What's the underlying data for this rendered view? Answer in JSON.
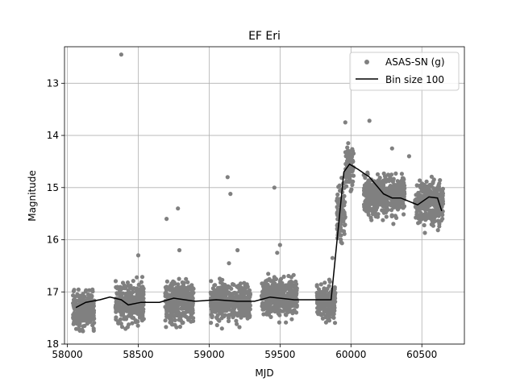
{
  "chart_data": {
    "type": "scatter",
    "title": "EF Eri",
    "xlabel": "MJD",
    "ylabel": "Magnitude",
    "xlim": [
      57980,
      60800
    ],
    "ylim": [
      18.0,
      12.3
    ],
    "y_inverted": true,
    "grid": true,
    "legend_position": "top-right",
    "x_ticks": [
      58000,
      58500,
      59000,
      59500,
      60000,
      60500
    ],
    "y_ticks": [
      13,
      14,
      15,
      16,
      17,
      18
    ],
    "series": [
      {
        "name": "ASAS-SN (g)",
        "kind": "scatter",
        "color": "#808080",
        "observing_seasons": [
          {
            "x_range": [
              58040,
              58190
            ],
            "mag_mean": 17.35,
            "mag_spread": 0.45
          },
          {
            "x_range": [
              58340,
              58540
            ],
            "mag_mean": 17.2,
            "mag_spread": 0.5
          },
          {
            "x_range": [
              58690,
              58890
            ],
            "mag_mean": 17.2,
            "mag_spread": 0.5
          },
          {
            "x_range": [
              59010,
              59290
            ],
            "mag_mean": 17.2,
            "mag_spread": 0.45
          },
          {
            "x_range": [
              59370,
              59620
            ],
            "mag_mean": 17.1,
            "mag_spread": 0.45
          },
          {
            "x_range": [
              59760,
              59890
            ],
            "mag_mean": 17.2,
            "mag_spread": 0.45
          },
          {
            "x_range": [
              59900,
              59960
            ],
            "mag_mean": 15.5,
            "mag_spread": 0.8
          },
          {
            "x_range": [
              59960,
              60020
            ],
            "mag_mean": 14.6,
            "mag_spread": 0.45
          },
          {
            "x_range": [
              60090,
              60380
            ],
            "mag_mean": 15.15,
            "mag_spread": 0.5
          },
          {
            "x_range": [
              60450,
              60650
            ],
            "mag_mean": 15.3,
            "mag_spread": 0.5
          }
        ],
        "outliers": [
          {
            "x": 58380,
            "y": 12.45
          },
          {
            "x": 58500,
            "y": 16.3
          },
          {
            "x": 58700,
            "y": 15.6
          },
          {
            "x": 58780,
            "y": 15.4
          },
          {
            "x": 58790,
            "y": 16.2
          },
          {
            "x": 59130,
            "y": 14.8
          },
          {
            "x": 59150,
            "y": 15.12
          },
          {
            "x": 59200,
            "y": 16.2
          },
          {
            "x": 59140,
            "y": 16.45
          },
          {
            "x": 59460,
            "y": 15.0
          },
          {
            "x": 59500,
            "y": 16.1
          },
          {
            "x": 59480,
            "y": 16.25
          },
          {
            "x": 59870,
            "y": 16.35
          },
          {
            "x": 59960,
            "y": 13.75
          },
          {
            "x": 60130,
            "y": 13.72
          },
          {
            "x": 60290,
            "y": 14.25
          },
          {
            "x": 60410,
            "y": 14.4
          }
        ]
      },
      {
        "name": "Bin size 100",
        "kind": "line",
        "color": "#000000",
        "x": [
          58060,
          58130,
          58230,
          58300,
          58380,
          58430,
          58520,
          58650,
          58750,
          58900,
          59050,
          59200,
          59320,
          59430,
          59600,
          59720,
          59860,
          59950,
          59990,
          60050,
          60130,
          60230,
          60290,
          60350,
          60470,
          60550,
          60610,
          60640
        ],
        "y": [
          17.3,
          17.2,
          17.15,
          17.1,
          17.15,
          17.25,
          17.2,
          17.2,
          17.12,
          17.18,
          17.15,
          17.18,
          17.18,
          17.1,
          17.15,
          17.15,
          17.15,
          14.7,
          14.55,
          14.65,
          14.8,
          15.12,
          15.2,
          15.2,
          15.33,
          15.18,
          15.2,
          15.45
        ]
      }
    ]
  }
}
